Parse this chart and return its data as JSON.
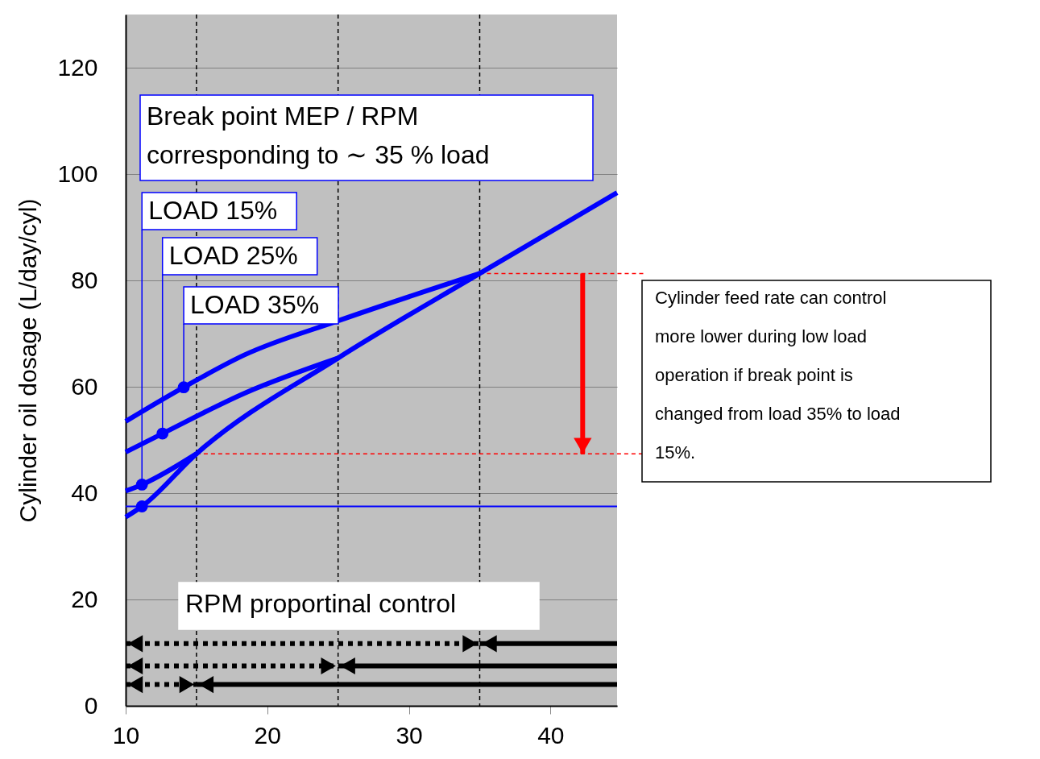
{
  "chart_data": {
    "type": "line",
    "ylabel": "Cylinder oil dosage (L/day/cyl)",
    "xlim": [
      10,
      44.7
    ],
    "xticks": [
      10,
      20,
      30,
      40
    ],
    "ylim": [
      0,
      130
    ],
    "yticks": [
      0,
      20,
      40,
      60,
      80,
      100,
      120
    ],
    "grid": "y",
    "marker": "none",
    "line_style": "solid",
    "series": [
      {
        "color": "#0000ff",
        "x": [
          10,
          11.15,
          15,
          25,
          35,
          44.7
        ],
        "values": [
          35.5,
          37.5,
          47.4,
          65.4,
          81.3,
          96.5
        ]
      },
      {
        "color": "#0000ff",
        "x": [
          10,
          11.15,
          15
        ],
        "values": [
          40.4,
          41.6,
          47.4
        ]
      },
      {
        "color": "#0000ff",
        "x": [
          10,
          12.6,
          18.4,
          25
        ],
        "values": [
          47.7,
          51.2,
          58.8,
          65.4
        ]
      },
      {
        "color": "#0000ff",
        "x": [
          10,
          14.1,
          18.4,
          25,
          35
        ],
        "values": [
          53.5,
          59.9,
          66,
          72.4,
          81.3
        ]
      },
      {
        "type": "scatter",
        "marker": "circle",
        "color": "#0000ff",
        "x": [
          11.15,
          11.15,
          12.6,
          14.1
        ],
        "values": [
          37.5,
          41.6,
          51.2,
          59.9
        ]
      },
      {
        "color": "#000000",
        "line_style": "dotted",
        "x": [
          10,
          35
        ],
        "values": [
          11.7,
          11.7
        ]
      },
      {
        "color": "#000000",
        "x": [
          35,
          44.7
        ],
        "values": [
          11.7,
          11.7
        ]
      },
      {
        "color": "#000000",
        "line_style": "dotted",
        "x": [
          10,
          25
        ],
        "values": [
          7.5,
          7.5
        ]
      },
      {
        "color": "#000000",
        "x": [
          25,
          44.7
        ],
        "values": [
          7.5,
          7.5
        ]
      },
      {
        "color": "#000000",
        "line_style": "dotted",
        "x": [
          10,
          15
        ],
        "values": [
          4,
          4
        ]
      },
      {
        "color": "#000000",
        "x": [
          15,
          44.7
        ],
        "values": [
          4,
          4
        ]
      }
    ],
    "ref_lines": [
      {
        "axis": "x",
        "value": 15,
        "color": "#000000",
        "line_style": "dashed"
      },
      {
        "axis": "x",
        "value": 25,
        "color": "#000000",
        "line_style": "dashed"
      },
      {
        "axis": "x",
        "value": 35,
        "color": "#000000",
        "line_style": "dashed"
      },
      {
        "axis": "y",
        "value": 37.5,
        "color": "#0000ff",
        "line_style": "solid"
      },
      {
        "axis": "y",
        "value": 81.3,
        "color": "#ff0000",
        "line_style": "dashed"
      },
      {
        "axis": "y",
        "value": 47.4,
        "color": "#ff0000",
        "line_style": "dashed"
      }
    ],
    "annotations": [
      "Break point MEP / RPM\ncorresponding to ∼ 35 % load",
      {
        "text": "LOAD 15%",
        "x": 11.15,
        "y": 41.6
      },
      {
        "text": "LOAD 25%",
        "x": 12.6,
        "y": 51.2
      },
      {
        "text": "LOAD 35%",
        "x": 14.1,
        "y": 59.9
      },
      "RPM  proportinal control",
      "Cylinder feed rate can control more lower during low load operation if break point is changed from load 35% to load 15%."
    ]
  }
}
